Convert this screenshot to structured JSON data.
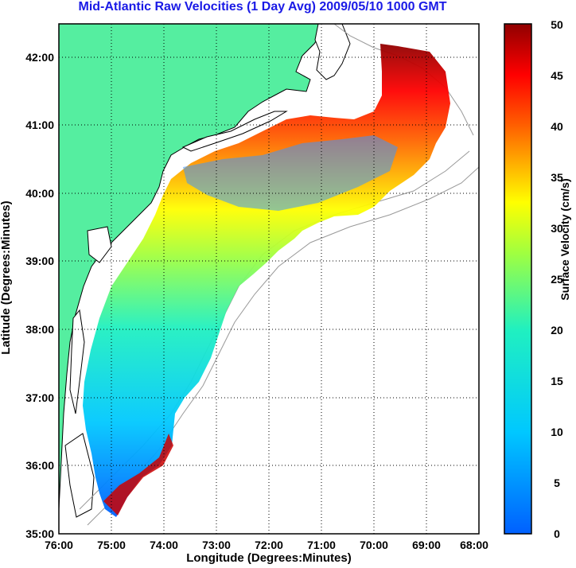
{
  "title": "Mid-Atlantic Raw Velocities (1 Day Avg) 2009/05/10 1000 GMT",
  "x_axis": {
    "label": "Longitude (Degrees:Minutes)",
    "ticks": [
      "76:00",
      "75:00",
      "74:00",
      "73:00",
      "72:00",
      "71:00",
      "70:00",
      "69:00",
      "68:00"
    ]
  },
  "y_axis": {
    "label": "Latitude (Degrees:Minutes)",
    "ticks": [
      "42:00",
      "41:00",
      "40:00",
      "39:00",
      "38:00",
      "37:00",
      "36:00",
      "35:00"
    ]
  },
  "colorbar": {
    "label": "Surface Velocity (cm/s)",
    "ticks": [
      "50",
      "45",
      "40",
      "35",
      "30",
      "25",
      "20",
      "15",
      "10",
      "5",
      "0"
    ],
    "range": [
      0,
      50
    ],
    "colormap": "jet"
  },
  "map_extent": {
    "lon_range": [
      -76,
      -68
    ],
    "lat_range": [
      35,
      42.5
    ]
  },
  "colors": {
    "land": "#55eea0",
    "ocean": "#ffffff",
    "title": "#1a1ae6",
    "coastline": "#000000",
    "bathymetry": "#999999"
  }
}
